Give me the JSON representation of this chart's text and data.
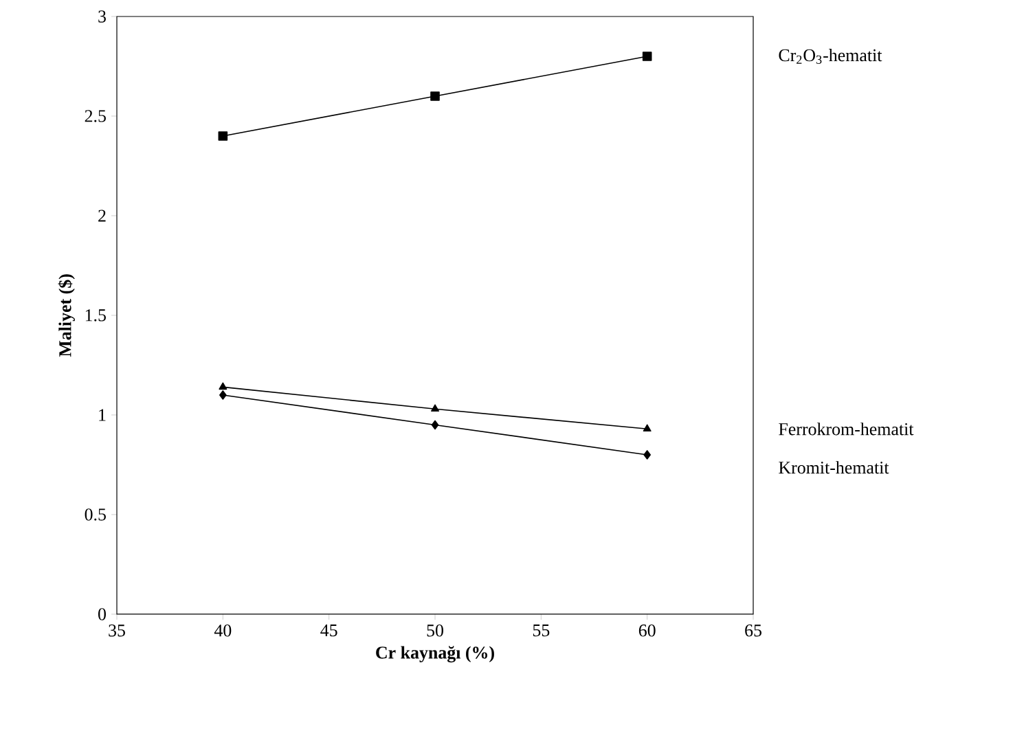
{
  "chart_data": {
    "type": "line",
    "xlabel": "Cr kaynağı (%)",
    "ylabel": "Maliyet ($)",
    "x": [
      40,
      50,
      60
    ],
    "series": [
      {
        "name": "Cr$_{2}$O$_{3}$-hematit",
        "color": "#000000",
        "marker": "square",
        "values": [
          2.4,
          2.6,
          2.8
        ]
      },
      {
        "name": "Ferrokrom-hematit",
        "color": "#000000",
        "marker": "triangle",
        "values": [
          1.14,
          1.03,
          0.93
        ]
      },
      {
        "name": "Kromit-hematit",
        "color": "#000000",
        "marker": "diamond",
        "values": [
          1.1,
          0.95,
          0.8
        ]
      }
    ],
    "xlim": [
      35,
      65
    ],
    "xticks": [
      35,
      40,
      45,
      50,
      55,
      60,
      65
    ],
    "ylim": [
      0,
      3
    ],
    "yticks": [
      0,
      0.5,
      1,
      1.5,
      2,
      2.5,
      3
    ],
    "grid": false,
    "legend": false,
    "line_style": "solid"
  }
}
